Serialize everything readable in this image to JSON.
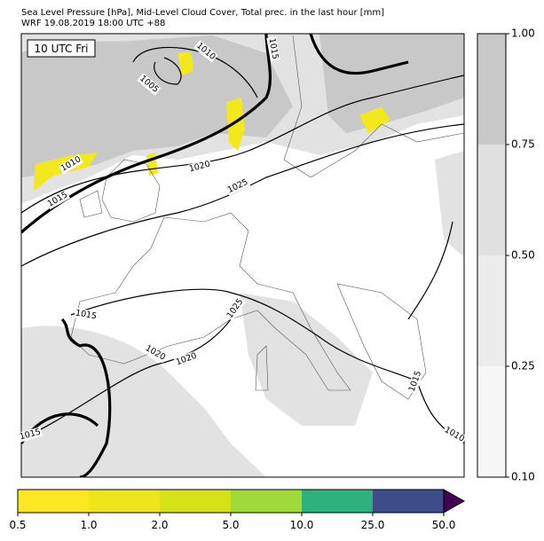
{
  "header": {
    "title": "Sea Level Pressure [hPa], Mid-Level Cloud Cover, Total prec. in the last hour [mm]",
    "subtitle": "WRF 19.08.2019 18:00 UTC +88"
  },
  "map": {
    "time_label": "10 UTC Fri",
    "contour_labels": [
      "1010",
      "1005",
      "1015",
      "1010",
      "1015",
      "1020",
      "1025",
      "1015",
      "1025",
      "1020",
      "1020",
      "1015",
      "1015",
      "1010"
    ]
  },
  "cloud_colorbar": {
    "ticks": [
      {
        "value": 0.1,
        "label": "0.10"
      },
      {
        "value": 0.25,
        "label": "0.25"
      },
      {
        "value": 0.5,
        "label": "0.50"
      },
      {
        "value": 0.75,
        "label": "0.75"
      },
      {
        "value": 1.0,
        "label": "1.00"
      }
    ],
    "colors": [
      "#f7f7f7",
      "#ececec",
      "#e0e0e0",
      "#c8c8c8"
    ]
  },
  "precip_colorbar": {
    "ticks": [
      0.5,
      {
        "value": 1.0,
        "label": "1.0"
      },
      {
        "value": 2.0,
        "label": "2.0"
      },
      {
        "value": 5.0,
        "label": "5.0"
      },
      {
        "value": 10.0,
        "label": "10.0"
      },
      {
        "value": 25.0,
        "label": "25.0"
      },
      {
        "value": 50.0,
        "label": "50.0"
      }
    ],
    "colors": [
      "#fde725",
      "#efe51c",
      "#d5e21a",
      "#a0da39",
      "#2db27d",
      "#3e4c8a"
    ],
    "extend_color": "#440154"
  }
}
